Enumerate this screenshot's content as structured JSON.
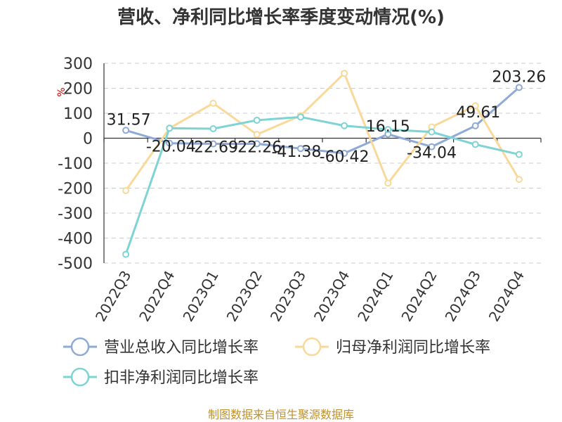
{
  "chart_data": {
    "type": "line",
    "title": "营收、净利同比增长率季度变动情况(%)",
    "ylabel": "%",
    "categories": [
      "2022Q3",
      "2022Q4",
      "2023Q1",
      "2023Q2",
      "2023Q3",
      "2023Q4",
      "2024Q1",
      "2024Q2",
      "2024Q3",
      "2024Q4"
    ],
    "ylim": [
      -500,
      300
    ],
    "yticks": [
      300,
      200,
      100,
      0,
      -100,
      -200,
      -300,
      -400,
      -500
    ],
    "ytick_labels": [
      "300",
      "200",
      "100",
      "0",
      "-100",
      "-200",
      "-300",
      "-400",
      "-500"
    ],
    "grid": true,
    "legend_position": "bottom",
    "series": [
      {
        "name": "营业总收入同比增长率",
        "color": "#8faad6",
        "values": [
          31.57,
          -20.04,
          -22.69,
          -22.26,
          -41.38,
          -60.42,
          16.15,
          -34.04,
          49.61,
          203.26
        ],
        "labels": [
          "31.57",
          "-20.04",
          "-22.69",
          "-22.26",
          "-41.38",
          "-60.42",
          "16.15",
          "-34.04",
          "49.61",
          "203.26"
        ]
      },
      {
        "name": "归母净利润同比增长率",
        "color": "#f8d99a",
        "values": [
          -210,
          40,
          140,
          15,
          90,
          260,
          -180,
          45,
          130,
          -165
        ]
      },
      {
        "name": "扣非净利润同比增长率",
        "color": "#7ed3d4",
        "values": [
          -465,
          40,
          38,
          72,
          85,
          50,
          35,
          25,
          -25,
          -65
        ]
      }
    ]
  },
  "source": "制图数据来自恒生聚源数据库"
}
